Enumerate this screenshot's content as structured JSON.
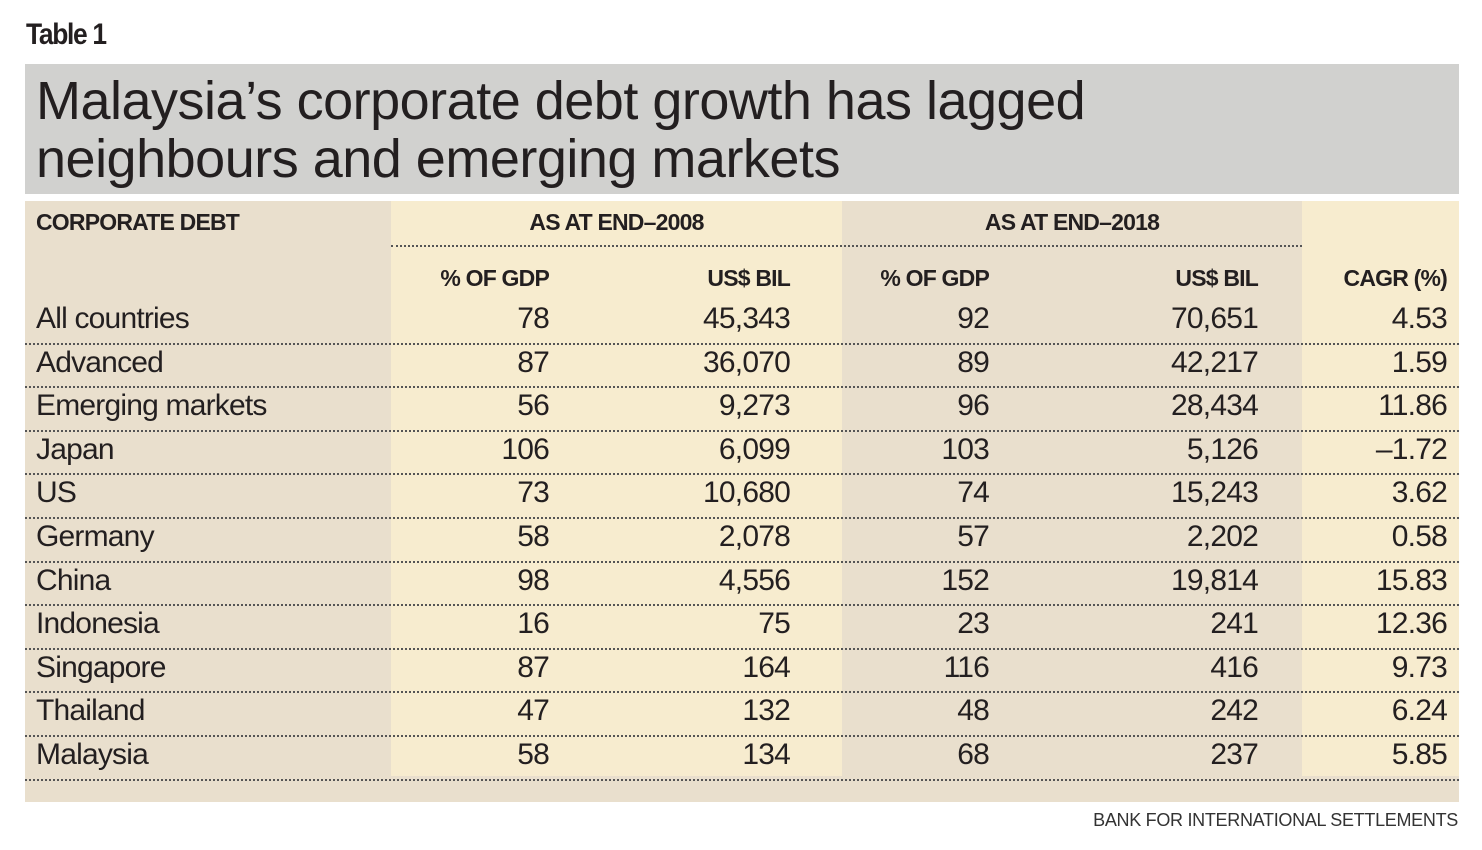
{
  "label": "Table 1",
  "title_line1": "Malaysia’s corporate debt growth has lagged",
  "title_line2": "neighbours and emerging markets",
  "headers": {
    "row_header": "CORPORATE DEBT",
    "group_2008": "AS AT END–2008",
    "group_2018": "AS AT END–2018",
    "gdp_2008": "% OF GDP",
    "usd_2008": "US$ BIL",
    "gdp_2018": "% OF GDP",
    "usd_2018": "US$ BIL",
    "cagr": "CAGR (%)"
  },
  "rows": [
    {
      "name": "All countries",
      "gdp08": "78",
      "usd08": "45,343",
      "gdp18": "92",
      "usd18": "70,651",
      "cagr": "4.53"
    },
    {
      "name": "Advanced",
      "gdp08": "87",
      "usd08": "36,070",
      "gdp18": "89",
      "usd18": "42,217",
      "cagr": "1.59"
    },
    {
      "name": "Emerging markets",
      "gdp08": "56",
      "usd08": "9,273",
      "gdp18": "96",
      "usd18": "28,434",
      "cagr": "11.86"
    },
    {
      "name": "Japan",
      "gdp08": "106",
      "usd08": "6,099",
      "gdp18": "103",
      "usd18": "5,126",
      "cagr": "–1.72"
    },
    {
      "name": "US",
      "gdp08": "73",
      "usd08": "10,680",
      "gdp18": "74",
      "usd18": "15,243",
      "cagr": "3.62"
    },
    {
      "name": "Germany",
      "gdp08": "58",
      "usd08": "2,078",
      "gdp18": "57",
      "usd18": "2,202",
      "cagr": "0.58"
    },
    {
      "name": "China",
      "gdp08": "98",
      "usd08": "4,556",
      "gdp18": "152",
      "usd18": "19,814",
      "cagr": "15.83"
    },
    {
      "name": "Indonesia",
      "gdp08": "16",
      "usd08": "75",
      "gdp18": "23",
      "usd18": "241",
      "cagr": "12.36"
    },
    {
      "name": "Singapore",
      "gdp08": "87",
      "usd08": "164",
      "gdp18": "116",
      "usd18": "416",
      "cagr": "9.73"
    },
    {
      "name": "Thailand",
      "gdp08": "47",
      "usd08": "132",
      "gdp18": "48",
      "usd18": "242",
      "cagr": "6.24"
    },
    {
      "name": "Malaysia",
      "gdp08": "58",
      "usd08": "134",
      "gdp18": "68",
      "usd18": "237",
      "cagr": "5.85"
    }
  ],
  "source": "BANK FOR INTERNATIONAL SETTLEMENTS"
}
